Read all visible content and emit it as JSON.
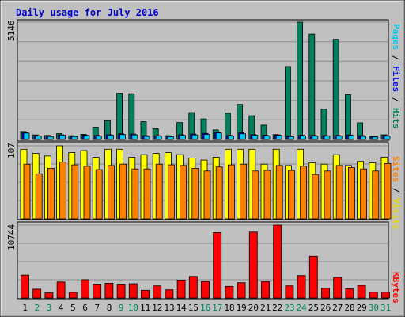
{
  "title": "Daily usage for July 2016",
  "colors": {
    "background": "#c0c0c0",
    "title_text": "#0000cc",
    "hits": "#00805c",
    "files": "#0000ff",
    "pages": "#00c8f0",
    "visits": "#ffff00",
    "sites": "#ff8000",
    "kbytes": "#ff0000",
    "weekend_label": "#00805c",
    "weekday_label": "#000000",
    "label_slash": "#000000"
  },
  "chart_data": [
    {
      "type": "bar",
      "title": "Daily usage for July 2016",
      "categories": [
        "1",
        "2",
        "3",
        "4",
        "5",
        "6",
        "7",
        "8",
        "9",
        "10",
        "11",
        "12",
        "13",
        "14",
        "15",
        "16",
        "17",
        "18",
        "19",
        "20",
        "21",
        "22",
        "23",
        "24",
        "25",
        "26",
        "27",
        "28",
        "29",
        "30",
        "31"
      ],
      "weekend_days": [
        2,
        3,
        9,
        10,
        16,
        17,
        23,
        24,
        30,
        31
      ],
      "ymax_label": "5146",
      "ylim": [
        0,
        5146
      ],
      "grid": true,
      "legend_labels": [
        "Pages",
        "Files",
        "Hits"
      ],
      "series": [
        {
          "name": "Hits",
          "values": [
            350,
            200,
            180,
            260,
            170,
            230,
            540,
            820,
            2030,
            2010,
            780,
            470,
            170,
            740,
            1180,
            900,
            420,
            1150,
            1540,
            1040,
            630,
            220,
            3200,
            5146,
            4620,
            1330,
            4390,
            1970,
            730,
            150,
            210
          ]
        },
        {
          "name": "Files",
          "values": [
            300,
            170,
            150,
            210,
            150,
            190,
            180,
            210,
            250,
            240,
            170,
            170,
            150,
            210,
            240,
            270,
            320,
            180,
            300,
            220,
            190,
            200,
            160,
            190,
            180,
            170,
            180,
            200,
            170,
            130,
            170
          ]
        },
        {
          "name": "Pages",
          "values": [
            280,
            150,
            130,
            190,
            130,
            170,
            150,
            190,
            220,
            200,
            140,
            150,
            120,
            180,
            200,
            230,
            290,
            160,
            250,
            190,
            160,
            180,
            130,
            160,
            150,
            150,
            150,
            170,
            140,
            110,
            150
          ]
        }
      ]
    },
    {
      "type": "bar",
      "ymax_label": "107",
      "ylim": [
        0,
        107
      ],
      "grid": true,
      "legend_labels": [
        "Sites",
        "Visits"
      ],
      "series": [
        {
          "name": "Visits",
          "values": [
            102,
            96,
            92,
            107,
            97,
            100,
            90,
            102,
            102,
            90,
            94,
            96,
            97,
            94,
            89,
            86,
            90,
            102,
            102,
            102,
            80,
            102,
            78,
            102,
            82,
            80,
            94,
            78,
            84,
            82,
            90
          ]
        },
        {
          "name": "Sites",
          "values": [
            80,
            66,
            74,
            83,
            79,
            77,
            72,
            78,
            80,
            73,
            73,
            80,
            79,
            78,
            74,
            70,
            76,
            79,
            80,
            70,
            71,
            78,
            71,
            77,
            65,
            70,
            78,
            75,
            73,
            70,
            81
          ]
        }
      ]
    },
    {
      "type": "bar",
      "ymax_label": "10744",
      "ylim": [
        0,
        10744
      ],
      "grid": true,
      "legend_labels": [
        "KBytes"
      ],
      "series": [
        {
          "name": "KBytes",
          "values": [
            3370,
            1300,
            750,
            2360,
            820,
            2700,
            2040,
            2170,
            2040,
            2100,
            1130,
            1790,
            1200,
            2640,
            3180,
            2430,
            9640,
            1720,
            2250,
            9720,
            2430,
            10744,
            1790,
            3310,
            6150,
            1430,
            3050,
            1330,
            1860,
            850,
            840
          ]
        }
      ]
    }
  ]
}
